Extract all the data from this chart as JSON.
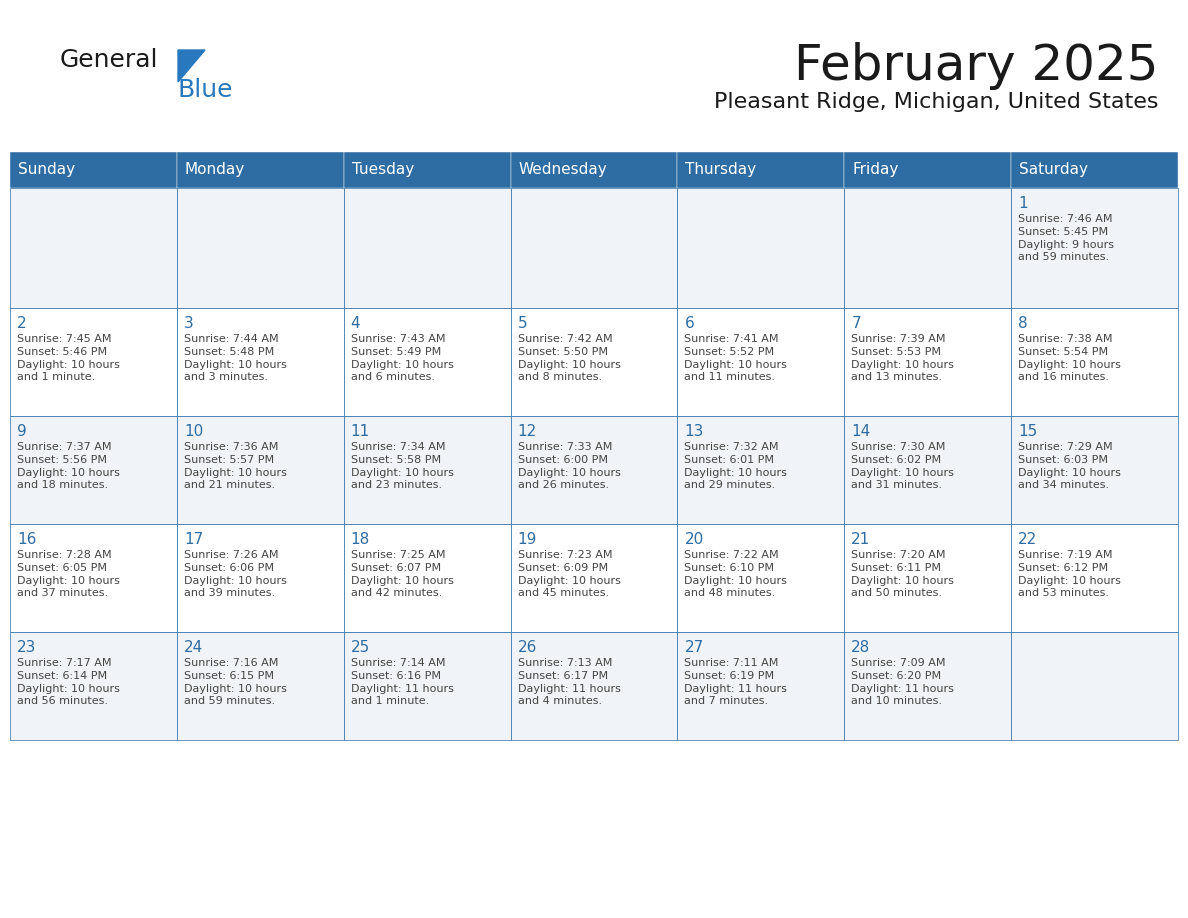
{
  "title": "February 2025",
  "subtitle": "Pleasant Ridge, Michigan, United States",
  "days_of_week": [
    "Sunday",
    "Monday",
    "Tuesday",
    "Wednesday",
    "Thursday",
    "Friday",
    "Saturday"
  ],
  "header_bg": "#2E6DA4",
  "header_text": "#FFFFFF",
  "cell_bg_light": "#F0F4F8",
  "cell_bg_white": "#FFFFFF",
  "border_color": "#2E6DA4",
  "day_number_color": "#2E6DA4",
  "text_color": "#444444",
  "logo_general_color": "#1a1a1a",
  "logo_blue_color": "#2878BE",
  "calendar_data": [
    [
      {
        "day": null,
        "info": ""
      },
      {
        "day": null,
        "info": ""
      },
      {
        "day": null,
        "info": ""
      },
      {
        "day": null,
        "info": ""
      },
      {
        "day": null,
        "info": ""
      },
      {
        "day": null,
        "info": ""
      },
      {
        "day": 1,
        "info": "Sunrise: 7:46 AM\nSunset: 5:45 PM\nDaylight: 9 hours\nand 59 minutes."
      }
    ],
    [
      {
        "day": 2,
        "info": "Sunrise: 7:45 AM\nSunset: 5:46 PM\nDaylight: 10 hours\nand 1 minute."
      },
      {
        "day": 3,
        "info": "Sunrise: 7:44 AM\nSunset: 5:48 PM\nDaylight: 10 hours\nand 3 minutes."
      },
      {
        "day": 4,
        "info": "Sunrise: 7:43 AM\nSunset: 5:49 PM\nDaylight: 10 hours\nand 6 minutes."
      },
      {
        "day": 5,
        "info": "Sunrise: 7:42 AM\nSunset: 5:50 PM\nDaylight: 10 hours\nand 8 minutes."
      },
      {
        "day": 6,
        "info": "Sunrise: 7:41 AM\nSunset: 5:52 PM\nDaylight: 10 hours\nand 11 minutes."
      },
      {
        "day": 7,
        "info": "Sunrise: 7:39 AM\nSunset: 5:53 PM\nDaylight: 10 hours\nand 13 minutes."
      },
      {
        "day": 8,
        "info": "Sunrise: 7:38 AM\nSunset: 5:54 PM\nDaylight: 10 hours\nand 16 minutes."
      }
    ],
    [
      {
        "day": 9,
        "info": "Sunrise: 7:37 AM\nSunset: 5:56 PM\nDaylight: 10 hours\nand 18 minutes."
      },
      {
        "day": 10,
        "info": "Sunrise: 7:36 AM\nSunset: 5:57 PM\nDaylight: 10 hours\nand 21 minutes."
      },
      {
        "day": 11,
        "info": "Sunrise: 7:34 AM\nSunset: 5:58 PM\nDaylight: 10 hours\nand 23 minutes."
      },
      {
        "day": 12,
        "info": "Sunrise: 7:33 AM\nSunset: 6:00 PM\nDaylight: 10 hours\nand 26 minutes."
      },
      {
        "day": 13,
        "info": "Sunrise: 7:32 AM\nSunset: 6:01 PM\nDaylight: 10 hours\nand 29 minutes."
      },
      {
        "day": 14,
        "info": "Sunrise: 7:30 AM\nSunset: 6:02 PM\nDaylight: 10 hours\nand 31 minutes."
      },
      {
        "day": 15,
        "info": "Sunrise: 7:29 AM\nSunset: 6:03 PM\nDaylight: 10 hours\nand 34 minutes."
      }
    ],
    [
      {
        "day": 16,
        "info": "Sunrise: 7:28 AM\nSunset: 6:05 PM\nDaylight: 10 hours\nand 37 minutes."
      },
      {
        "day": 17,
        "info": "Sunrise: 7:26 AM\nSunset: 6:06 PM\nDaylight: 10 hours\nand 39 minutes."
      },
      {
        "day": 18,
        "info": "Sunrise: 7:25 AM\nSunset: 6:07 PM\nDaylight: 10 hours\nand 42 minutes."
      },
      {
        "day": 19,
        "info": "Sunrise: 7:23 AM\nSunset: 6:09 PM\nDaylight: 10 hours\nand 45 minutes."
      },
      {
        "day": 20,
        "info": "Sunrise: 7:22 AM\nSunset: 6:10 PM\nDaylight: 10 hours\nand 48 minutes."
      },
      {
        "day": 21,
        "info": "Sunrise: 7:20 AM\nSunset: 6:11 PM\nDaylight: 10 hours\nand 50 minutes."
      },
      {
        "day": 22,
        "info": "Sunrise: 7:19 AM\nSunset: 6:12 PM\nDaylight: 10 hours\nand 53 minutes."
      }
    ],
    [
      {
        "day": 23,
        "info": "Sunrise: 7:17 AM\nSunset: 6:14 PM\nDaylight: 10 hours\nand 56 minutes."
      },
      {
        "day": 24,
        "info": "Sunrise: 7:16 AM\nSunset: 6:15 PM\nDaylight: 10 hours\nand 59 minutes."
      },
      {
        "day": 25,
        "info": "Sunrise: 7:14 AM\nSunset: 6:16 PM\nDaylight: 11 hours\nand 1 minute."
      },
      {
        "day": 26,
        "info": "Sunrise: 7:13 AM\nSunset: 6:17 PM\nDaylight: 11 hours\nand 4 minutes."
      },
      {
        "day": 27,
        "info": "Sunrise: 7:11 AM\nSunset: 6:19 PM\nDaylight: 11 hours\nand 7 minutes."
      },
      {
        "day": 28,
        "info": "Sunrise: 7:09 AM\nSunset: 6:20 PM\nDaylight: 11 hours\nand 10 minutes."
      },
      {
        "day": null,
        "info": ""
      }
    ]
  ]
}
